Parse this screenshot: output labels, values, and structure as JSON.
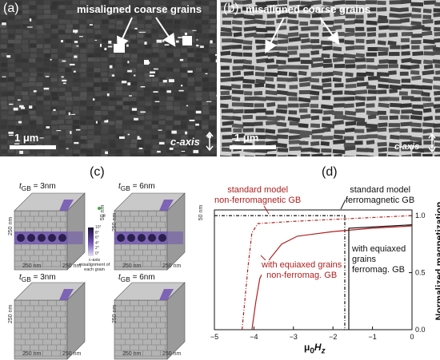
{
  "panel_a": {
    "label": "(a)",
    "annotation": "misaligned coarse grains",
    "scale_bar": "1 μm",
    "axis_label": "c-axis"
  },
  "panel_b": {
    "label": "(b)",
    "annotation": "misaligned coarse grains",
    "scale_bar": "1 μm",
    "axis_label": "c-axis"
  },
  "panel_c": {
    "label": "(c)",
    "cubes": [
      {
        "t_prefix": "t",
        "t_sub": "GB",
        "t_value": " = 3nm",
        "dims": [
          "250 nm",
          "250 nm",
          "250 nm"
        ],
        "band_dim": "50 nm"
      },
      {
        "t_prefix": "t",
        "t_sub": "GB",
        "t_value": " = 6nm",
        "dims": [
          "250 nm",
          "250 nm",
          "250 nm"
        ],
        "band_dim": "50 nm"
      },
      {
        "t_prefix": "t",
        "t_sub": "GB",
        "t_value": " = 3nm",
        "dims": [
          "250 nm",
          "250 nm",
          "250 nm"
        ]
      },
      {
        "t_prefix": "t",
        "t_sub": "GB",
        "t_value": " = 6nm",
        "dims": [
          "250 nm",
          "250 nm",
          "250 nm"
        ]
      }
    ],
    "colorbar_title": "c-axis misalignment of each grain",
    "colorbar_ticks": [
      "0°",
      "2°",
      "4°",
      "6°",
      "8°",
      "10°"
    ],
    "colors": {
      "grain": "#a8a8a8",
      "misaligned": "#6a4bb0",
      "dark_grain": "#2a1f4d"
    }
  },
  "panel_d": {
    "label": "(d)",
    "ylabel": "Normalized magnetization",
    "xlabel_prefix": "μ",
    "xlabel_sub": "0",
    "xlabel_main": "H",
    "xlabel_sub2": "z",
    "annotations": {
      "std_nonferro_line1": "standard model",
      "std_nonferro_line2": "non-ferromagnetic GB",
      "std_ferro_line1": "standard model",
      "std_ferro_line2": "ferromagnetic GB",
      "equiax_nonferro_line1": "with equiaxed grains",
      "equiax_nonferro_line2": "non-ferromag. GB",
      "equiax_ferro_line1": "with equiaxed",
      "equiax_ferro_line2": "grains",
      "equiax_ferro_line3": "ferromag. GB"
    },
    "colors": {
      "red": "#b01e1e",
      "black": "#111111"
    },
    "chart_data": {
      "type": "line",
      "xlim": [
        -5,
        0
      ],
      "ylim": [
        0,
        1.05
      ],
      "xticks": [
        -5,
        -4,
        -3,
        -2,
        -1,
        0
      ],
      "xtick_labels": [
        "−5",
        "−4",
        "−3",
        "−2",
        "−1",
        "0"
      ],
      "yticks": [
        0,
        0.5,
        1.0
      ],
      "ytick_labels": [
        "0.0",
        "0.5",
        "1.0"
      ],
      "grid": false,
      "series": [
        {
          "style": "red-dashdot",
          "points": [
            [
              -4.3,
              0
            ],
            [
              -4.15,
              0.55
            ],
            [
              -4.05,
              0.85
            ],
            [
              -3.9,
              0.93
            ],
            [
              -3.0,
              0.95
            ],
            [
              0,
              1.0
            ]
          ]
        },
        {
          "style": "black-dashdot",
          "points": [
            [
              -5,
              1.0
            ],
            [
              -1.7,
              1.0
            ],
            [
              -1.7,
              0
            ],
            [
              -1.72,
              0
            ]
          ]
        },
        {
          "style": "red-solid",
          "points": [
            [
              -4.05,
              0
            ],
            [
              -3.95,
              0.25
            ],
            [
              -3.85,
              0.45
            ],
            [
              -3.6,
              0.62
            ],
            [
              -3.3,
              0.75
            ],
            [
              -2.9,
              0.82
            ],
            [
              -2.0,
              0.86
            ],
            [
              -1.0,
              0.89
            ],
            [
              0,
              0.91
            ]
          ]
        },
        {
          "style": "black-solid",
          "points": [
            [
              -1.6,
              0
            ],
            [
              -1.6,
              0.89
            ],
            [
              -1.0,
              0.9
            ],
            [
              0,
              0.92
            ]
          ]
        }
      ]
    }
  }
}
